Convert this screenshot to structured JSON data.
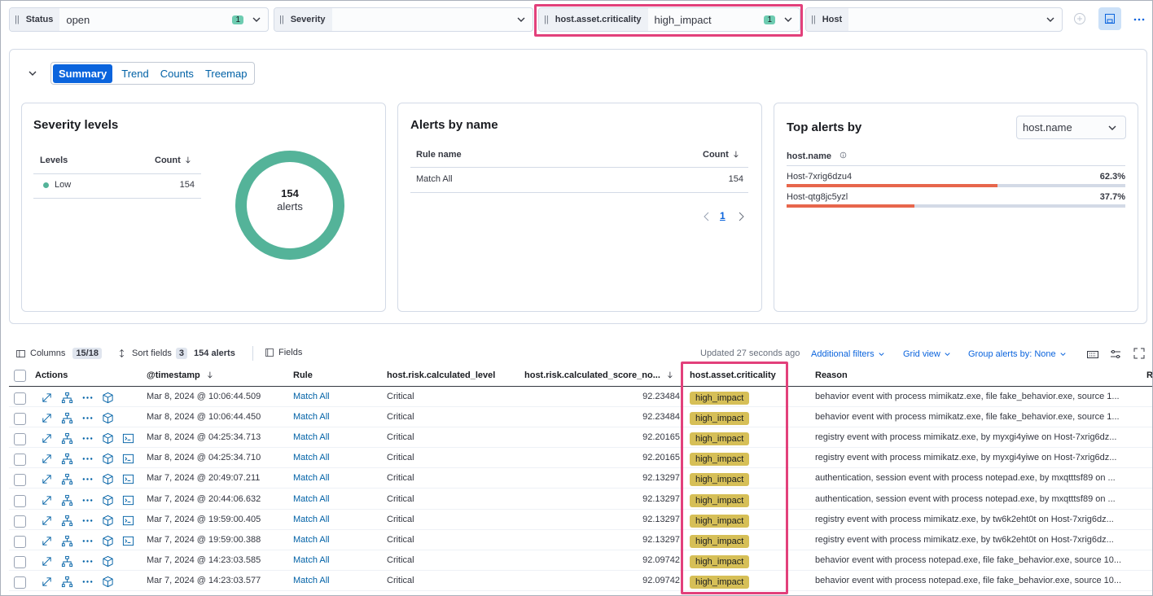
{
  "filters": [
    {
      "label": "Status",
      "value": "open",
      "count": 1
    },
    {
      "label": "Severity"
    },
    {
      "label": "host.asset.criticality",
      "value": "high_impact",
      "count": 1
    },
    {
      "label": "Host"
    }
  ],
  "tabs": [
    "Summary",
    "Trend",
    "Counts",
    "Treemap"
  ],
  "severity_panel": {
    "title": "Severity levels",
    "columns": [
      "Levels",
      "Count"
    ],
    "rows": [
      {
        "level": "Low",
        "count": 154
      }
    ],
    "donut": {
      "total": 154,
      "label": "alerts"
    }
  },
  "alerts_by_name": {
    "title": "Alerts by name",
    "columns": [
      "Rule name",
      "Count"
    ],
    "rows": [
      {
        "name": "Match All",
        "count": 154
      }
    ],
    "page": 1
  },
  "top_alerts": {
    "title": "Top alerts by",
    "selector": "host.name",
    "field": "host.name",
    "rows": [
      {
        "host": "Host-7xrig6dzu4",
        "percent": 62.3,
        "value_label": "62.3%"
      },
      {
        "host": "Host-qtg8jc5yzl",
        "percent": 37.7,
        "value_label": "37.7%"
      }
    ]
  },
  "toolbar": {
    "columns_label": "Columns",
    "columns_count": "15/18",
    "sort_label": "Sort fields",
    "sort_count": 3,
    "alerts_count": "154 alerts",
    "fields": "Fields",
    "updated": "Updated 27 seconds ago",
    "additional_filters": "Additional filters",
    "grid_view": "Grid view",
    "group_by": "Group alerts by: None"
  },
  "table": {
    "columns": [
      "Actions",
      "@timestamp",
      "Rule",
      "host.risk.calculated_level",
      "host.risk.calculated_score_no...",
      "host.asset.criticality",
      "Reason",
      "R"
    ],
    "rows": [
      [
        "Mar 8, 2024 @ 10:06:44.509",
        "Match All",
        "Critical",
        "92.23484",
        "high_impact",
        "behavior event with process mimikatz.exe, file fake_behavior.exe, source 1..."
      ],
      [
        "Mar 8, 2024 @ 10:06:44.450",
        "Match All",
        "Critical",
        "92.23484",
        "high_impact",
        "behavior event with process mimikatz.exe, file fake_behavior.exe, source 1..."
      ],
      [
        "Mar 8, 2024 @ 04:25:34.713",
        "Match All",
        "Critical",
        "92.20165",
        "high_impact",
        "registry event with process mimikatz.exe, by myxgi4yiwe on Host-7xrig6dz..."
      ],
      [
        "Mar 8, 2024 @ 04:25:34.710",
        "Match All",
        "Critical",
        "92.20165",
        "high_impact",
        "registry event with process mimikatz.exe, by myxgi4yiwe on Host-7xrig6dz..."
      ],
      [
        "Mar 7, 2024 @ 20:49:07.211",
        "Match All",
        "Critical",
        "92.13297",
        "high_impact",
        "authentication, session event with process notepad.exe, by mxqtttsf89 on ..."
      ],
      [
        "Mar 7, 2024 @ 20:44:06.632",
        "Match All",
        "Critical",
        "92.13297",
        "high_impact",
        "authentication, session event with process notepad.exe, by mxqtttsf89 on ..."
      ],
      [
        "Mar 7, 2024 @ 19:59:00.405",
        "Match All",
        "Critical",
        "92.13297",
        "high_impact",
        "registry event with process mimikatz.exe, by tw6k2eht0t on Host-7xrig6dz..."
      ],
      [
        "Mar 7, 2024 @ 19:59:00.388",
        "Match All",
        "Critical",
        "92.13297",
        "high_impact",
        "registry event with process mimikatz.exe, by tw6k2eht0t on Host-7xrig6dz..."
      ],
      [
        "Mar 7, 2024 @ 14:23:03.585",
        "Match All",
        "Critical",
        "92.09742",
        "high_impact",
        "behavior event with process notepad.exe, file fake_behavior.exe, source 10..."
      ],
      [
        "Mar 7, 2024 @ 14:23:03.577",
        "Match All",
        "Critical",
        "92.09742",
        "high_impact",
        "behavior event with process notepad.exe, file fake_behavior.exe, source 10..."
      ]
    ]
  }
}
